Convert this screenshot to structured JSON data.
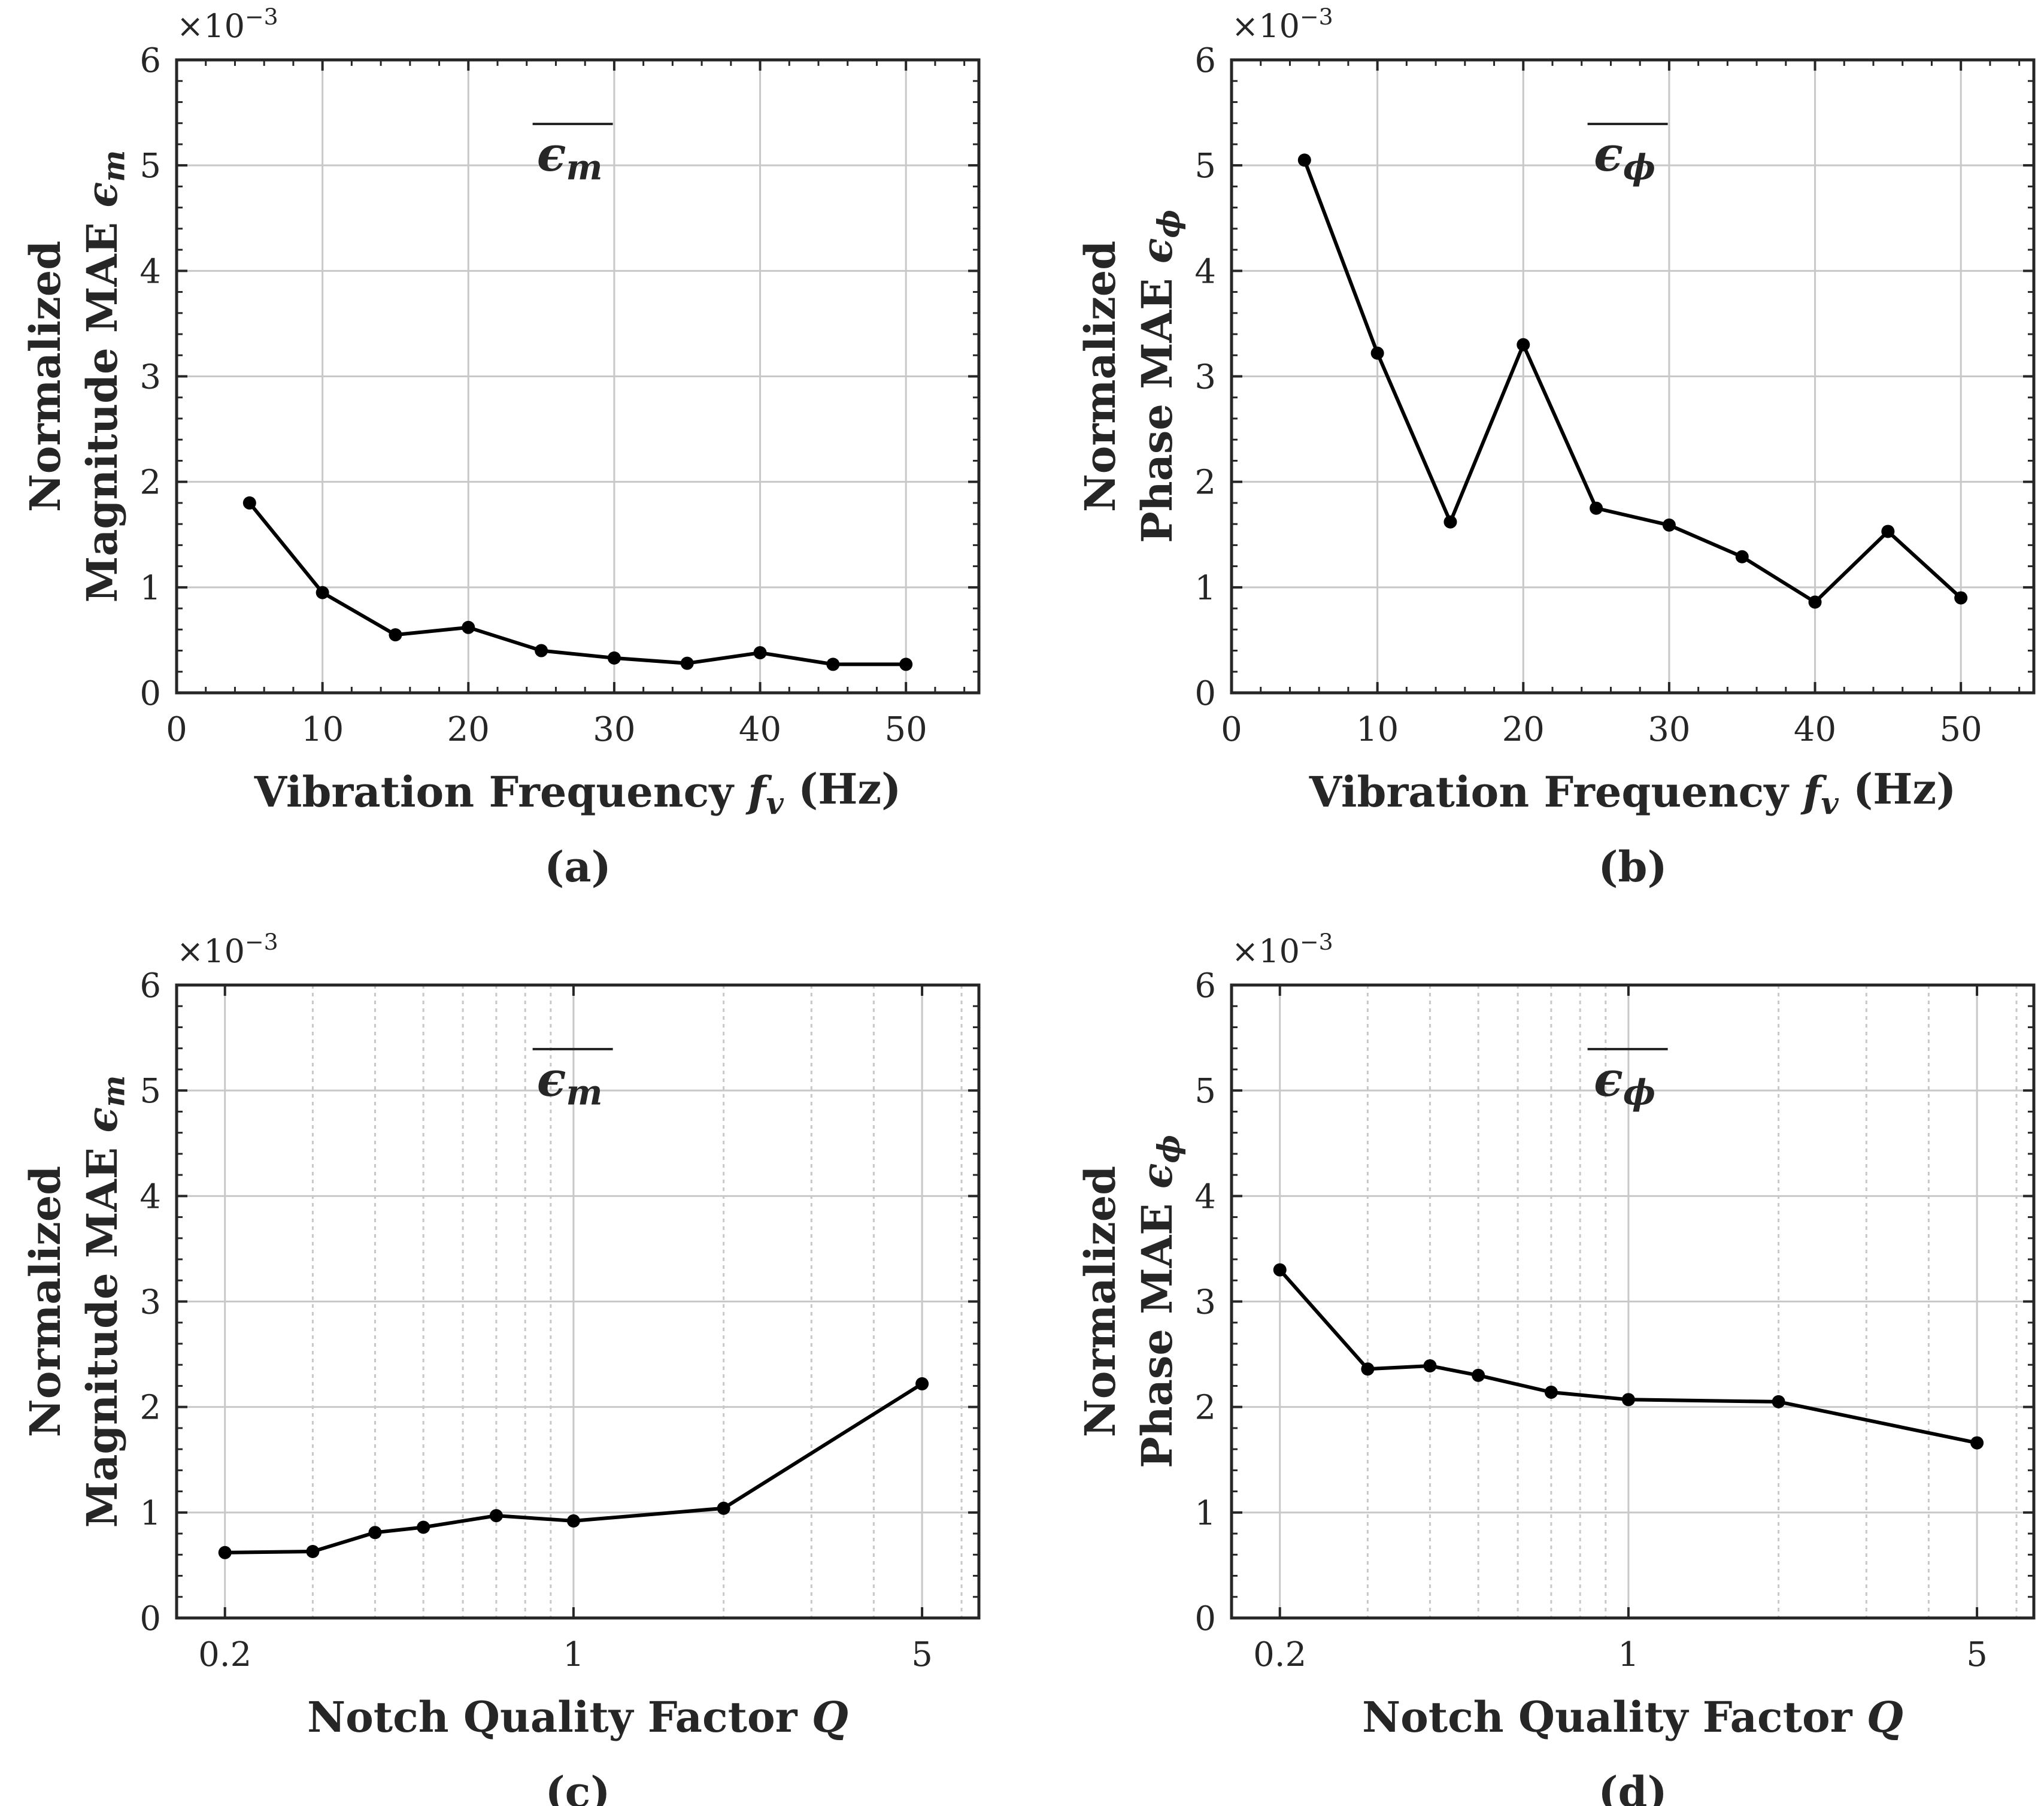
{
  "colors": {
    "line": "#000000",
    "axis": "#262626",
    "grid": "#c8c8c8"
  },
  "chart_data": [
    {
      "type": "line",
      "panel_label": "(a)",
      "annotation": "ϵm",
      "exponent_label": "×10−3",
      "xlabel": "Vibration Frequency fv (Hz)",
      "ylabel_line1": "Normalized",
      "ylabel_line2": "Magnitude MAE ϵm",
      "xscale": "linear",
      "xlim": [
        0,
        55
      ],
      "ylim": [
        0,
        6
      ],
      "xticks": [
        0,
        10,
        20,
        30,
        40,
        50
      ],
      "xtick_labels": [
        "0",
        "10",
        "20",
        "30",
        "40",
        "50"
      ],
      "yticks": [
        0,
        1,
        2,
        3,
        4,
        5,
        6
      ],
      "ytick_labels": [
        "0",
        "1",
        "2",
        "3",
        "4",
        "5",
        "6"
      ],
      "grid": true,
      "x": [
        5,
        10,
        15,
        20,
        25,
        30,
        35,
        40,
        45,
        50
      ],
      "y": [
        1.8,
        0.95,
        0.55,
        0.62,
        0.4,
        0.33,
        0.28,
        0.38,
        0.27,
        0.27
      ]
    },
    {
      "type": "line",
      "panel_label": "(b)",
      "annotation": "ϵϕ",
      "exponent_label": "×10−3",
      "xlabel": "Vibration Frequency fv (Hz)",
      "ylabel_line1": "Normalized",
      "ylabel_line2": "Phase MAE ϵϕ",
      "xscale": "linear",
      "xlim": [
        0,
        55
      ],
      "ylim": [
        0,
        6
      ],
      "xticks": [
        0,
        10,
        20,
        30,
        40,
        50
      ],
      "xtick_labels": [
        "0",
        "10",
        "20",
        "30",
        "40",
        "50"
      ],
      "yticks": [
        0,
        1,
        2,
        3,
        4,
        5,
        6
      ],
      "ytick_labels": [
        "0",
        "1",
        "2",
        "3",
        "4",
        "5",
        "6"
      ],
      "grid": true,
      "x": [
        5,
        10,
        15,
        20,
        25,
        30,
        35,
        40,
        45,
        50
      ],
      "y": [
        5.05,
        3.22,
        1.62,
        3.3,
        1.75,
        1.59,
        1.29,
        0.86,
        1.53,
        0.9
      ]
    },
    {
      "type": "line",
      "panel_label": "(c)",
      "annotation": "ϵm",
      "exponent_label": "×10−3",
      "xlabel": "Notch Quality Factor Q",
      "ylabel_line1": "Normalized",
      "ylabel_line2": "Magnitude MAE ϵm",
      "xscale": "log",
      "xlim": [
        0.16,
        6.5
      ],
      "ylim": [
        0,
        6
      ],
      "xticks": [
        0.2,
        1,
        5
      ],
      "xtick_labels": [
        "0.2",
        "1",
        "5"
      ],
      "yticks": [
        0,
        1,
        2,
        3,
        4,
        5,
        6
      ],
      "ytick_labels": [
        "0",
        "1",
        "2",
        "3",
        "4",
        "5",
        "6"
      ],
      "grid": true,
      "x": [
        0.2,
        0.3,
        0.4,
        0.5,
        0.7,
        1,
        2,
        5
      ],
      "y": [
        0.62,
        0.63,
        0.81,
        0.86,
        0.97,
        0.92,
        1.04,
        2.22
      ]
    },
    {
      "type": "line",
      "panel_label": "(d)",
      "annotation": "ϵϕ",
      "exponent_label": "×10−3",
      "xlabel": "Notch Quality Factor Q",
      "ylabel_line1": "Normalized",
      "ylabel_line2": "Phase MAE ϵϕ",
      "xscale": "log",
      "xlim": [
        0.16,
        6.5
      ],
      "ylim": [
        0,
        6
      ],
      "xticks": [
        0.2,
        1,
        5
      ],
      "xtick_labels": [
        "0.2",
        "1",
        "5"
      ],
      "yticks": [
        0,
        1,
        2,
        3,
        4,
        5,
        6
      ],
      "ytick_labels": [
        "0",
        "1",
        "2",
        "3",
        "4",
        "5",
        "6"
      ],
      "grid": true,
      "x": [
        0.2,
        0.3,
        0.4,
        0.5,
        0.7,
        1,
        2,
        5
      ],
      "y": [
        3.3,
        2.36,
        2.39,
        2.3,
        2.14,
        2.07,
        2.05,
        1.66
      ]
    }
  ]
}
